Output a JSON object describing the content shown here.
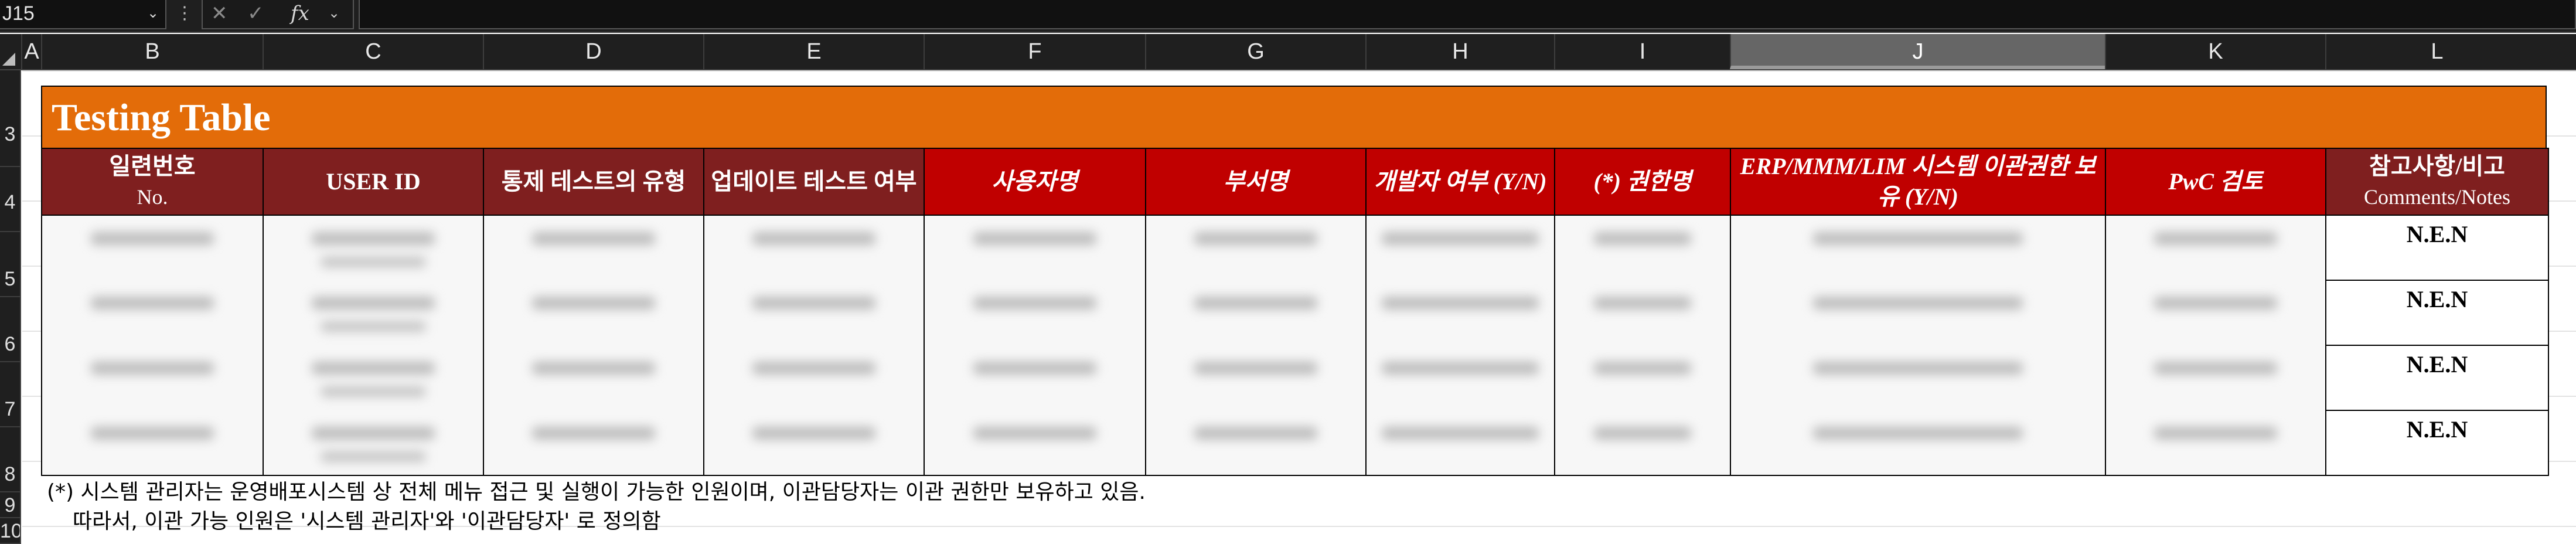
{
  "formula_bar": {
    "name_box": "J15",
    "fx_label": "fx",
    "cancel_symbol": "✕",
    "enter_symbol": "✓",
    "formula": ""
  },
  "columns": [
    "A",
    "B",
    "C",
    "D",
    "E",
    "F",
    "G",
    "H",
    "I",
    "J",
    "K",
    "L"
  ],
  "selected_column": "J",
  "rows": [
    "3",
    "4",
    "5",
    "6",
    "7",
    "8",
    "9",
    "10"
  ],
  "table": {
    "title": "Testing Table",
    "headers": [
      {
        "main": "일련번호",
        "sub": "No."
      },
      {
        "main": "USER ID",
        "sub": ""
      },
      {
        "main": "통제 테스트의 유형",
        "sub": ""
      },
      {
        "main": "업데이트 테스트 여부",
        "sub": ""
      },
      {
        "main": "사용자명",
        "sub": ""
      },
      {
        "main": "부서명",
        "sub": ""
      },
      {
        "main": "개발자 여부 (Y/N)",
        "sub": ""
      },
      {
        "main": "(*) 권한명",
        "sub": ""
      },
      {
        "main": "ERP/MMM/LIM 시스템 이관권한 보유 (Y/N)",
        "sub": ""
      },
      {
        "main": "PwC 검토",
        "sub": ""
      },
      {
        "main": "참고사항/비고",
        "sub": "Comments/Notes"
      }
    ],
    "rows": [
      {
        "notes": "N.E.N"
      },
      {
        "notes": "N.E.N"
      },
      {
        "notes": "N.E.N"
      },
      {
        "notes": "N.E.N"
      }
    ]
  },
  "footnotes": {
    "line1": "(*) 시스템 관리자는 운영배포시스템 상 전체 메뉴 접근 및 실행이 가능한 인원이며, 이관담당자는 이관 권한만 보유하고 있음.",
    "line2": "따라서, 이관 가능 인원은 '시스템 관리자'와 '이관담당자' 로 정의함"
  },
  "colors": {
    "title_band": "#e36c09",
    "header_dark": "#7f1f1f",
    "header_red": "#c00000"
  }
}
